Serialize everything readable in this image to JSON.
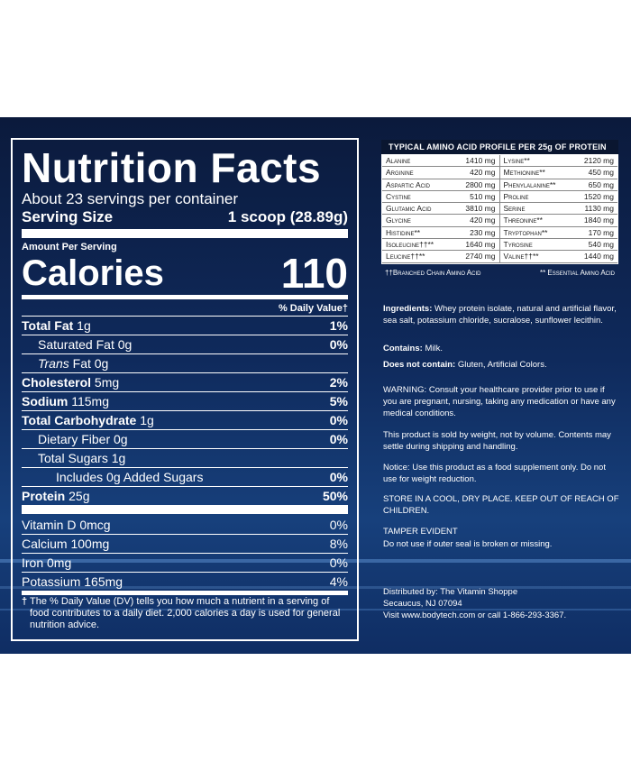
{
  "nutrition": {
    "title": "Nutrition Facts",
    "servings": "About 23 servings per container",
    "serving_size_label": "Serving Size",
    "serving_size_value": "1 scoop (28.89g)",
    "amount_per_serving": "Amount Per Serving",
    "calories_label": "Calories",
    "calories_value": "110",
    "dv_header": "% Daily Value†",
    "rows": [
      {
        "label_bold": "Total Fat",
        "label": " 1g",
        "pct": "1%"
      },
      {
        "label_bold": "",
        "label": "Saturated Fat 0g",
        "pct": "0%"
      },
      {
        "label_italic": "Trans",
        "label": " Fat 0g",
        "pct": ""
      },
      {
        "label_bold": "Cholesterol",
        "label": " 5mg",
        "pct": "2%"
      },
      {
        "label_bold": "Sodium",
        "label": " 115mg",
        "pct": "5%"
      },
      {
        "label_bold": "Total Carbohydrate",
        "label": " 1g",
        "pct": "0%"
      },
      {
        "label_bold": "",
        "label": "Dietary Fiber 0g",
        "pct": "0%"
      },
      {
        "label_bold": "",
        "label": "Total Sugars 1g",
        "pct": ""
      },
      {
        "label_bold": "",
        "label": "Includes 0g Added Sugars",
        "pct": "0%"
      },
      {
        "label_bold": "Protein",
        "label": " 25g",
        "pct": "50%"
      }
    ],
    "vitamins": [
      {
        "label": "Vitamin D 0mcg",
        "pct": "0%"
      },
      {
        "label": "Calcium 100mg",
        "pct": "8%"
      },
      {
        "label": "Iron 0mg",
        "pct": "0%"
      },
      {
        "label": "Potassium 165mg",
        "pct": "4%"
      }
    ],
    "footnote_mark": "†",
    "footnote": "The % Daily Value (DV) tells you how much a nutrient in a serving of food contributes to a daily diet. 2,000 calories a day is used for general nutrition advice."
  },
  "amino": {
    "title": "TYPICAL AMINO ACID PROFILE PER 25g OF PROTEIN",
    "rows": [
      [
        {
          "name": "Alanine",
          "val": "1410 mg"
        },
        {
          "name": "Lysine**",
          "val": "2120 mg"
        }
      ],
      [
        {
          "name": "Arginine",
          "val": "420 mg"
        },
        {
          "name": "Methionine**",
          "val": "450 mg"
        }
      ],
      [
        {
          "name": "Aspartic Acid",
          "val": "2800 mg"
        },
        {
          "name": "Phenylalanine**",
          "val": "650 mg"
        }
      ],
      [
        {
          "name": "Cystine",
          "val": "510 mg"
        },
        {
          "name": "Proline",
          "val": "1520 mg"
        }
      ],
      [
        {
          "name": "Glutamic Acid",
          "val": "3810 mg"
        },
        {
          "name": "Serine",
          "val": "1130 mg"
        }
      ],
      [
        {
          "name": "Glycine",
          "val": "420 mg"
        },
        {
          "name": "Threonine**",
          "val": "1840 mg"
        }
      ],
      [
        {
          "name": "Histidine**",
          "val": "230 mg"
        },
        {
          "name": "Tryptophan**",
          "val": "170 mg"
        }
      ],
      [
        {
          "name": "Isoleucine††**",
          "val": "1640 mg"
        },
        {
          "name": "Tyrosine",
          "val": "540 mg"
        }
      ],
      [
        {
          "name": "Leucine††**",
          "val": "2740 mg"
        },
        {
          "name": "Valine††**",
          "val": "1440 mg"
        }
      ]
    ],
    "legend_left": "††Branched Chain Amino Acid",
    "legend_right": "** Essential Amino Acid"
  },
  "info": {
    "ingredients_label": "Ingredients:",
    "ingredients": " Whey protein isolate, natural and artificial flavor, sea salt, potassium chloride, sucralose, sunflower lecithin.",
    "contains_label": "Contains:",
    "contains": " Milk.",
    "not_contain_label": "Does not contain:",
    "not_contain": " Gluten, Artificial Colors.",
    "warning": "WARNING: Consult your healthcare provider prior to use if you are pregnant, nursing, taking any medication or have any medical conditions.",
    "weight": "This product is sold by weight, not by volume. Contents may settle during shipping and handling.",
    "notice": "Notice: Use this product as a food supplement only. Do not use for weight reduction.",
    "store": "STORE IN A COOL, DRY PLACE. KEEP OUT OF REACH OF CHILDREN.",
    "tamper_title": "TAMPER EVIDENT",
    "tamper": "Do not use if outer seal is broken or missing.",
    "dist1": "Distributed by: The Vitamin Shoppe",
    "dist2": "Secaucus, NJ 07094",
    "dist3": "Visit www.bodytech.com or call 1-866-293-3367."
  }
}
